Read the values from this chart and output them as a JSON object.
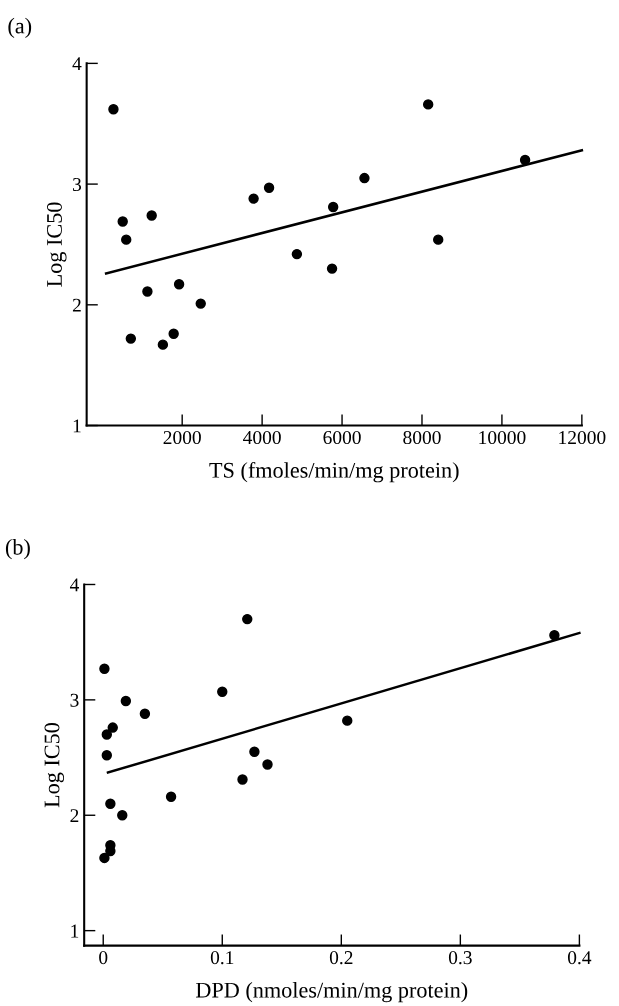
{
  "chart_data": [
    {
      "type": "scatter",
      "title": "(a)",
      "xlabel": "TS (fmoles/min/mg protein)",
      "ylabel": "Log IC50",
      "xlim": [
        -390,
        12000
      ],
      "ylim": [
        1,
        4
      ],
      "xticks": [
        2000,
        4000,
        6000,
        8000,
        10000,
        12000
      ],
      "yticks": [
        1,
        2,
        3,
        4
      ],
      "grid": false,
      "series": [
        {
          "color": "#000000",
          "marker": "circle",
          "x": [
            280,
            512,
            600,
            715,
            1130,
            1237,
            1517,
            1787,
            1923,
            2464,
            3787,
            4174,
            4870,
            5750,
            5778,
            6560,
            8155,
            8406,
            10580
          ],
          "values": [
            3.62,
            2.69,
            2.54,
            1.72,
            2.11,
            2.74,
            1.67,
            1.76,
            2.17,
            2.01,
            2.88,
            2.97,
            2.42,
            2.3,
            2.81,
            3.05,
            3.66,
            2.54,
            3.2
          ]
        },
        {
          "type": "line",
          "color": "#000000",
          "marker": "none",
          "line_style": "solid",
          "x": [
            97,
            12000
          ],
          "values": [
            2.26,
            3.28
          ]
        }
      ]
    },
    {
      "type": "scatter",
      "title": "(b)",
      "xlabel": "DPD (nmoles/min/mg protein)",
      "ylabel": "Log IC50",
      "xlim": [
        -0.016,
        0.4
      ],
      "ylim": [
        0.87,
        4
      ],
      "xticks": [
        0,
        0.1,
        0.2,
        0.3,
        0.4
      ],
      "yticks": [
        1,
        2,
        3,
        4
      ],
      "grid": false,
      "series": [
        {
          "color": "#000000",
          "marker": "circle",
          "x": [
            0.001,
            0.003,
            0.008,
            0.003,
            0.006,
            0.016,
            0.019,
            0.035,
            0.001,
            0.006,
            0.006,
            0.057,
            0.1,
            0.117,
            0.121,
            0.127,
            0.138,
            0.205,
            0.379
          ],
          "values": [
            3.27,
            2.7,
            2.76,
            2.52,
            2.1,
            2.0,
            2.99,
            2.88,
            1.63,
            1.74,
            1.69,
            2.16,
            3.07,
            2.31,
            3.7,
            2.55,
            2.44,
            2.82,
            3.56
          ]
        },
        {
          "type": "line",
          "color": "#000000",
          "marker": "none",
          "line_style": "solid",
          "x": [
            0.004,
            0.4
          ],
          "values": [
            2.37,
            3.58
          ]
        }
      ]
    }
  ]
}
